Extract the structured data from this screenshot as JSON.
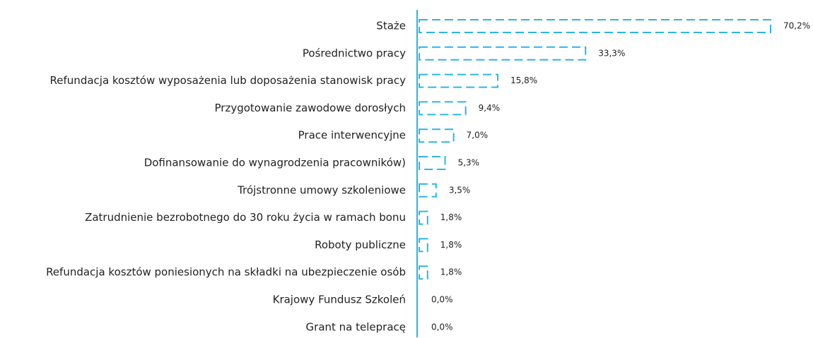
{
  "chart_data": {
    "type": "bar",
    "orientation": "horizontal",
    "color": "#29b6e8",
    "categories": [
      "Staże",
      "Pośrednictwo pracy",
      "Refundacja kosztów wyposażenia lub doposażenia stanowisk pracy",
      "Przygotowanie zawodowe dorosłych",
      "Prace interwencyjne",
      "Dofinansowanie do wynagrodzenia pracowników)",
      "Trójstronne umowy szkoleniowe",
      "Zatrudnienie bezrobotnego do 30 roku życia w ramach bonu",
      "Roboty publiczne",
      "Refundacja kosztów poniesionych na składki na ubezpieczenie osób",
      "Krajowy Fundusz Szkoleń",
      "Grant na telepracę"
    ],
    "values": [
      70.2,
      33.3,
      15.8,
      9.4,
      7.0,
      5.3,
      3.5,
      1.8,
      1.8,
      1.8,
      0.0,
      0.0
    ],
    "value_labels": [
      "70,2%",
      "33,3%",
      "15,8%",
      "9,4%",
      "7,0%",
      "5,3%",
      "3,5%",
      "1,8%",
      "1,8%",
      "1,8%",
      "0,0%",
      "0,0%"
    ],
    "xlim": [
      0,
      70.2
    ]
  }
}
